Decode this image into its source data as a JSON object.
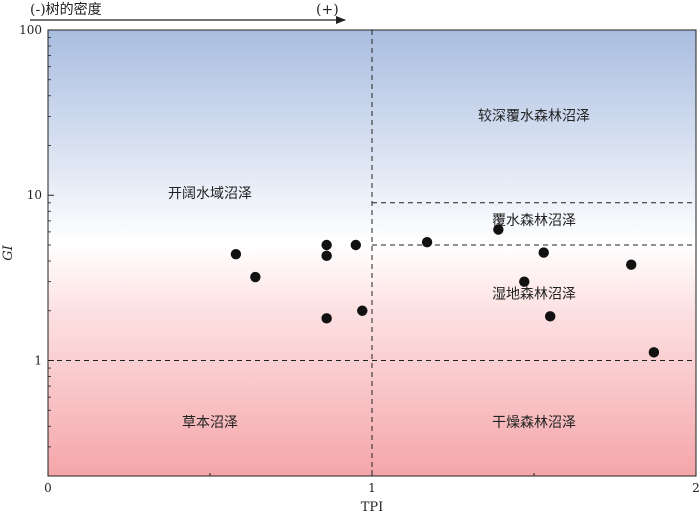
{
  "chart_data": {
    "type": "scatter",
    "xlabel": "TPI",
    "ylabel": "GI",
    "xlim": [
      0,
      2
    ],
    "ylim": [
      0.2,
      100
    ],
    "y_scale": "log",
    "x_ticks": [
      "0",
      "1",
      "2"
    ],
    "y_ticks": [
      "1",
      "10",
      "100"
    ],
    "grid": false,
    "background": {
      "top_color": "#a9bde0",
      "middle_color": "#ffffff",
      "bottom_color": "#f4a6aa"
    },
    "top_arrow": {
      "left_label": "(-)树的密度",
      "right_label": "(+)"
    },
    "threshold_lines": {
      "x": 1,
      "y_full": 1,
      "y_right_upper": 9,
      "y_right_lower": 5
    },
    "zones": [
      {
        "label": "较深覆水森林沼泽",
        "x": 1.5,
        "y": 30
      },
      {
        "label": "开阔水域沼泽",
        "x": 0.5,
        "y": 10.2
      },
      {
        "label": "覆水森林沼泽",
        "x": 1.5,
        "y": 7
      },
      {
        "label": "湿地森林沼泽",
        "x": 1.5,
        "y": 2.5
      },
      {
        "label": "草本沼泽",
        "x": 0.5,
        "y": 0.42
      },
      {
        "label": "干燥森林沼泽",
        "x": 1.5,
        "y": 0.42
      }
    ],
    "points": [
      {
        "x": 0.58,
        "y": 4.4
      },
      {
        "x": 0.64,
        "y": 3.2
      },
      {
        "x": 0.86,
        "y": 5.0
      },
      {
        "x": 0.86,
        "y": 4.3
      },
      {
        "x": 0.95,
        "y": 5.0
      },
      {
        "x": 0.86,
        "y": 1.8
      },
      {
        "x": 0.97,
        "y": 2.0
      },
      {
        "x": 1.17,
        "y": 5.2
      },
      {
        "x": 1.39,
        "y": 6.2
      },
      {
        "x": 1.53,
        "y": 4.5
      },
      {
        "x": 1.47,
        "y": 3.0
      },
      {
        "x": 1.55,
        "y": 1.85
      },
      {
        "x": 1.8,
        "y": 3.8
      },
      {
        "x": 1.87,
        "y": 1.12
      }
    ]
  }
}
